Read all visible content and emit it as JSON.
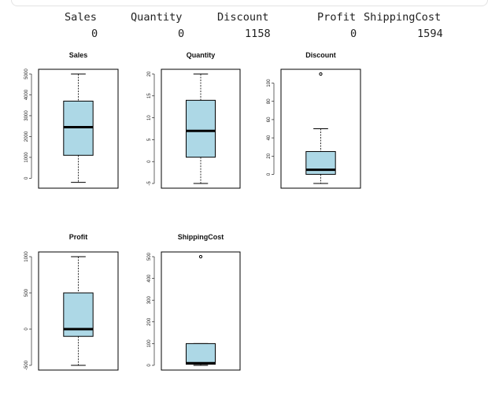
{
  "console": {
    "headers": [
      "Sales",
      "Quantity",
      "Discount",
      "Profit",
      "ShippingCost"
    ],
    "values": [
      "0",
      "0",
      "1158",
      "0",
      "1594"
    ]
  },
  "colors": {
    "box_fill": "#add8e6",
    "frame": "#000000"
  },
  "chart_data": [
    {
      "type": "box",
      "title": "Sales",
      "ylim": [
        -250,
        5000
      ],
      "ticks": [
        0,
        1000,
        2000,
        3000,
        4000,
        5000
      ],
      "whisker_low": -200,
      "q1": 1100,
      "median": 2450,
      "q3": 3700,
      "whisker_high": 5000,
      "outliers": []
    },
    {
      "type": "box",
      "title": "Quantity",
      "ylim": [
        -5,
        20
      ],
      "ticks": [
        -5,
        0,
        5,
        10,
        15,
        20
      ],
      "whisker_low": -5,
      "q1": 1,
      "median": 7,
      "q3": 14,
      "whisker_high": 20,
      "outliers": []
    },
    {
      "type": "box",
      "title": "Discount",
      "ylim": [
        -10,
        110
      ],
      "ticks": [
        0,
        20,
        40,
        60,
        80,
        100
      ],
      "whisker_low": -10,
      "q1": 0,
      "median": 5,
      "q3": 25,
      "whisker_high": 50,
      "outliers": [
        110
      ]
    },
    {
      "type": "box",
      "title": "Profit",
      "ylim": [
        -500,
        1000
      ],
      "ticks": [
        -500,
        0,
        500,
        1000
      ],
      "whisker_low": -500,
      "q1": -100,
      "median": 0,
      "q3": 500,
      "whisker_high": 1000,
      "outliers": []
    },
    {
      "type": "box",
      "title": "ShippingCost",
      "ylim": [
        0,
        500
      ],
      "ticks": [
        0,
        100,
        200,
        300,
        400,
        500
      ],
      "whisker_low": 0,
      "q1": 5,
      "median": 10,
      "q3": 100,
      "whisker_high": 100,
      "outliers": [
        500
      ]
    }
  ]
}
